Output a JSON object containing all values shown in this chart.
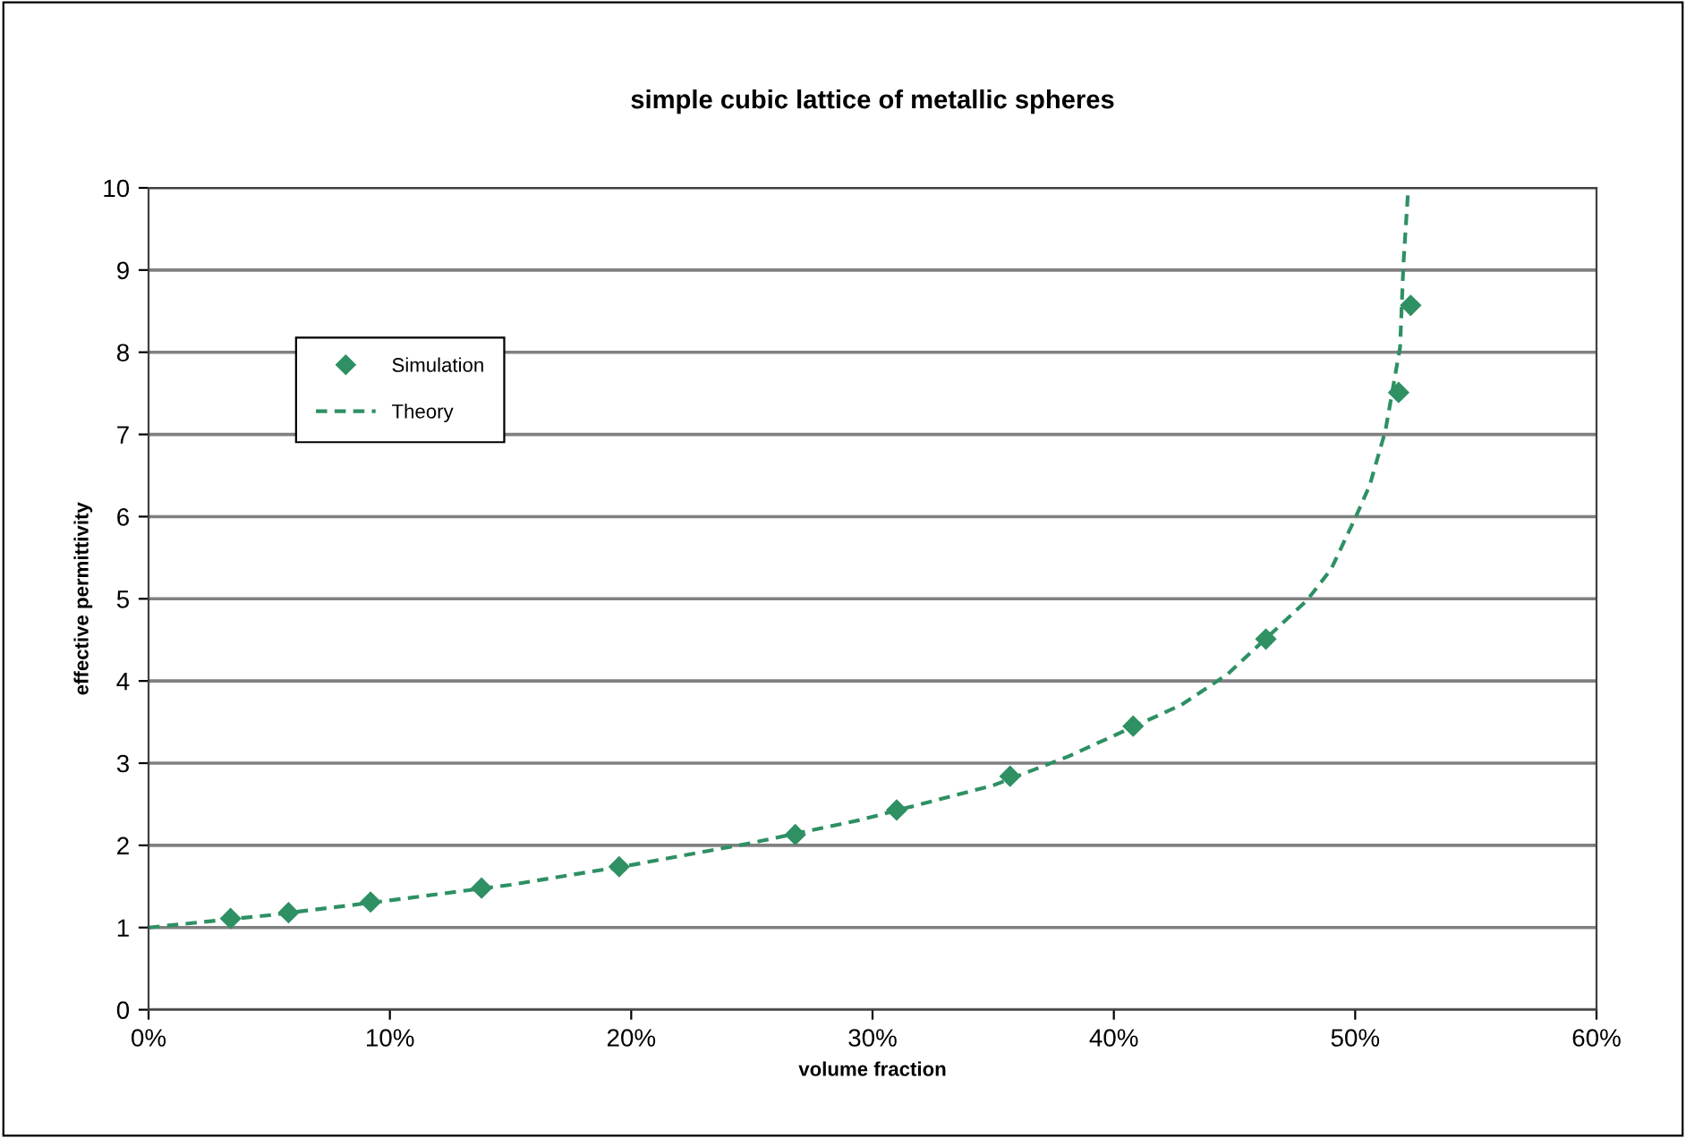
{
  "chart_data": {
    "type": "scatter",
    "title": "simple cubic lattice of metallic spheres",
    "xlabel": "volume fraction",
    "ylabel": "effective permittivity",
    "series": [
      {
        "name": "Simulation",
        "color": "#2e9063",
        "marker": "diamond",
        "x": [
          3.4,
          5.8,
          9.2,
          13.8,
          19.5,
          26.8,
          31.0,
          35.7,
          40.8,
          46.3,
          51.8,
          52.3
        ],
        "values": [
          1.11,
          1.18,
          1.31,
          1.48,
          1.74,
          2.13,
          2.43,
          2.84,
          3.45,
          4.51,
          7.51,
          8.57
        ]
      },
      {
        "name": "Theory",
        "type": "line",
        "color": "#2e9063",
        "line_style": "dashed",
        "marker": "none",
        "x": [
          0,
          5,
          10,
          15,
          20,
          25,
          29.5,
          35,
          38.1,
          42.8,
          44.7,
          48.0,
          49.0,
          50.0,
          50.6,
          51.25,
          51.86,
          52.0,
          52.2
        ],
        "values": [
          1,
          1.15,
          1.33,
          1.52,
          1.76,
          2.03,
          2.31,
          2.73,
          3.08,
          3.71,
          4.08,
          4.98,
          5.36,
          5.98,
          6.38,
          7.04,
          8.06,
          9.08,
          10
        ]
      }
    ],
    "xlim": [
      0,
      60
    ],
    "xticks": [
      {
        "value": 0,
        "label": "0%"
      },
      {
        "value": 10,
        "label": "10%"
      },
      {
        "value": 20,
        "label": "20%"
      },
      {
        "value": 30,
        "label": "30%"
      },
      {
        "value": 40,
        "label": "40%"
      },
      {
        "value": 50,
        "label": "50%"
      },
      {
        "value": 60,
        "label": "60%"
      }
    ],
    "ylim": [
      0,
      10
    ],
    "yticks": [
      0,
      1,
      2,
      3,
      4,
      5,
      6,
      7,
      8,
      9,
      10
    ],
    "grid": "y",
    "legend": "top left"
  }
}
